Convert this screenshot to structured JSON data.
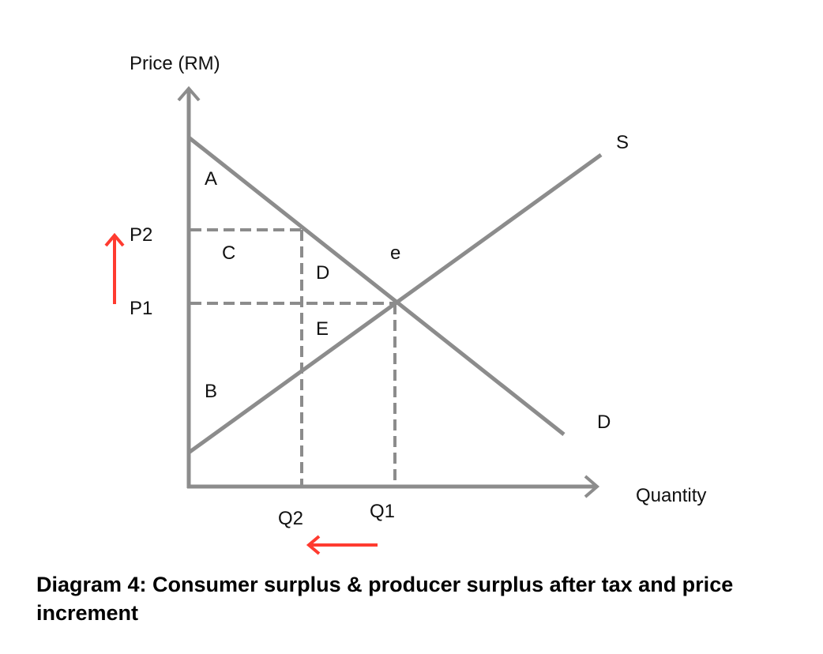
{
  "labels": {
    "y_axis": "Price (RM)",
    "x_axis": "Quantity",
    "supply": "S",
    "demand": "D",
    "equilibrium": "e",
    "p2": "P2",
    "p1": "P1",
    "q2": "Q2",
    "q1": "Q1",
    "area_a": "A",
    "area_b": "B",
    "area_c": "C",
    "area_d": "D",
    "area_e": "E"
  },
  "caption": "Diagram 4: Consumer surplus & producer surplus after tax and price increment",
  "colors": {
    "lines": "#8c8c8c",
    "arrows": "#ff3b30",
    "text": "#111111"
  }
}
